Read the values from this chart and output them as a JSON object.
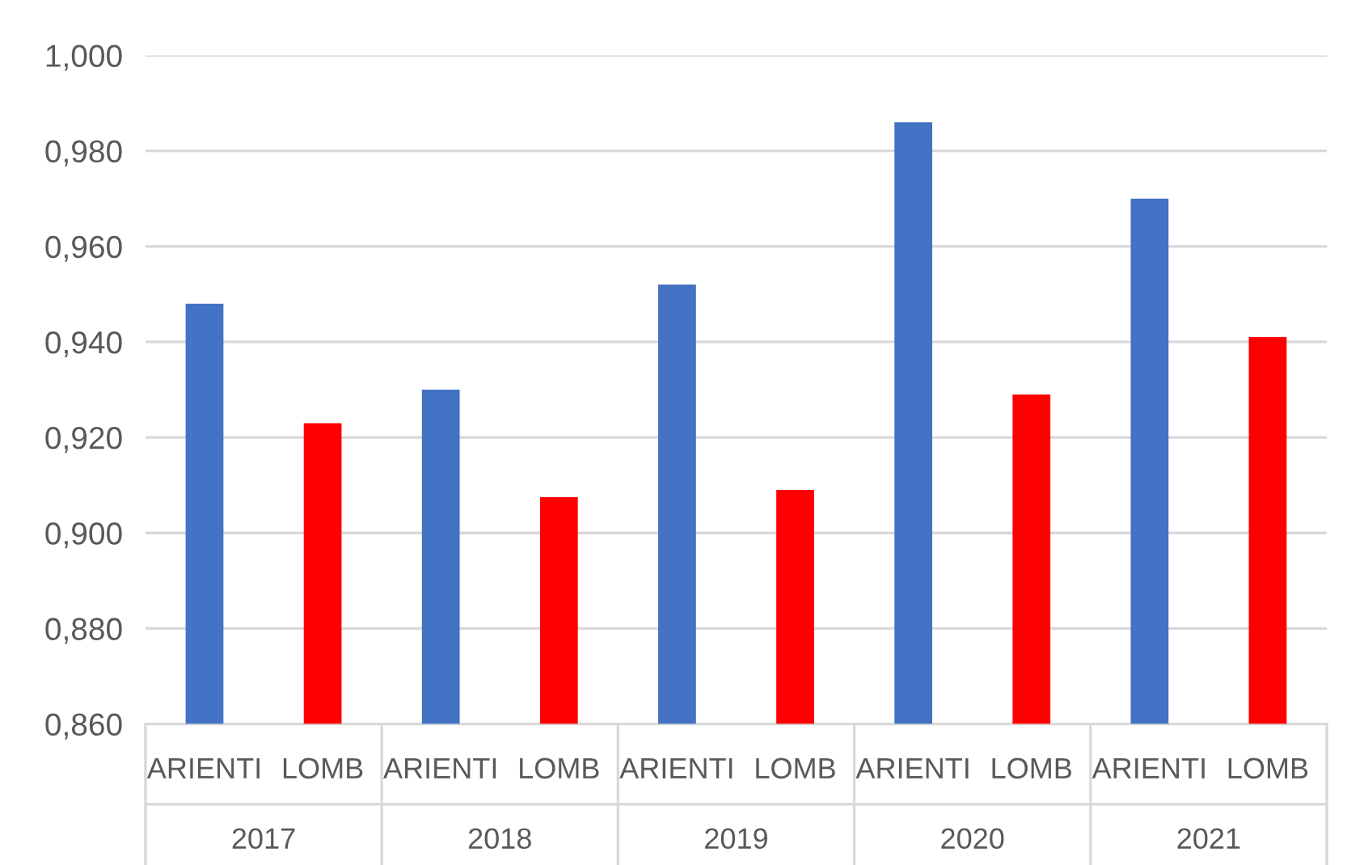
{
  "chart_data": {
    "type": "bar",
    "categories": [
      "2017",
      "2018",
      "2019",
      "2020",
      "2021"
    ],
    "series": [
      {
        "name": "ARIENTI",
        "color": "#4472c4",
        "values": [
          0.948,
          0.93,
          0.952,
          0.986,
          0.97
        ]
      },
      {
        "name": "LOMB",
        "color": "#ff0000",
        "values": [
          0.923,
          0.9075,
          0.909,
          0.929,
          0.941
        ]
      }
    ],
    "ylim": [
      0.86,
      1.0
    ],
    "yticks": [
      {
        "value": 0.86,
        "label": "0,860"
      },
      {
        "value": 0.88,
        "label": "0,880"
      },
      {
        "value": 0.9,
        "label": "0,900"
      },
      {
        "value": 0.92,
        "label": "0,920"
      },
      {
        "value": 0.94,
        "label": "0,940"
      },
      {
        "value": 0.96,
        "label": "0,960"
      },
      {
        "value": 0.98,
        "label": "0,980"
      },
      {
        "value": 1.0,
        "label": "1,000"
      }
    ],
    "grid": "y",
    "legend": false
  }
}
